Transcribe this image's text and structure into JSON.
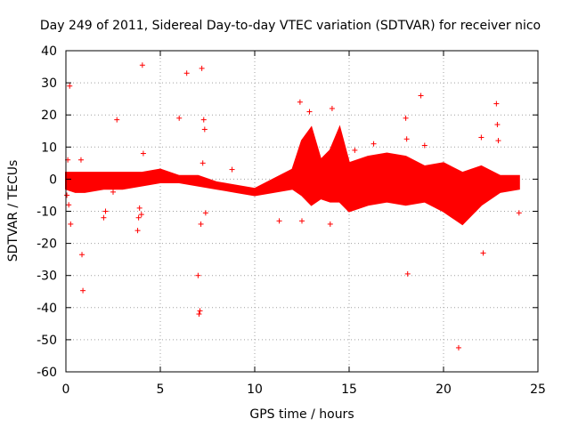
{
  "chart_data": {
    "type": "scatter",
    "title": "Day 249 of 2011, Sidereal Day-to-day VTEC variation (SDTVAR) for receiver nico",
    "xlabel": "GPS time / hours",
    "ylabel": "SDTVAR / TECUs",
    "xlim": [
      0,
      25
    ],
    "ylim": [
      -60,
      40
    ],
    "xticks": [
      0,
      5,
      10,
      15,
      20,
      25
    ],
    "yticks": [
      -60,
      -50,
      -40,
      -30,
      -20,
      -10,
      0,
      10,
      20,
      30,
      40
    ],
    "grid": true,
    "marker": "+",
    "series_color": "#ff0000",
    "series": [
      {
        "name": "SDTVAR",
        "x": [
          0.05,
          0.1,
          0.15,
          0.2,
          0.25,
          0.3,
          0.8,
          0.85,
          0.9,
          1.0,
          2.0,
          2.1,
          2.5,
          2.7,
          2.8,
          3.8,
          3.85,
          3.9,
          4.0,
          4.05,
          4.1,
          6.0,
          6.4,
          7.0,
          7.05,
          7.1,
          7.15,
          7.2,
          7.25,
          7.3,
          7.35,
          7.4,
          8.8,
          11.3,
          12.4,
          12.5,
          12.6,
          12.9,
          13.0,
          14.0,
          14.1,
          15.3,
          16.3,
          18.0,
          18.05,
          18.1,
          18.8,
          19.0,
          20.0,
          20.8,
          22.0,
          22.1,
          22.8,
          22.85,
          22.9,
          24.0
        ],
        "y": [
          -5,
          6,
          -8,
          29,
          -14,
          1,
          6,
          -23.5,
          -34.7,
          1,
          -12,
          -10,
          -4,
          18.5,
          1,
          -16,
          -12,
          -9,
          -11,
          35.5,
          8,
          19,
          33,
          -30,
          -42,
          -41,
          -14,
          34.5,
          5,
          18.5,
          15.5,
          -10.5,
          3,
          -13,
          24,
          -13,
          -5,
          21,
          -4,
          -14,
          22,
          9,
          11,
          19,
          12.5,
          -29.5,
          26,
          10.5,
          4,
          -52.5,
          13,
          -23,
          23.5,
          17,
          12,
          -10.5
        ]
      }
    ],
    "band_envelope": {
      "x": [
        0,
        0.5,
        1,
        2,
        3,
        4,
        5,
        6,
        7,
        8,
        9,
        10,
        11,
        12,
        12.5,
        13,
        13.5,
        14,
        14.5,
        15,
        16,
        17,
        18,
        19,
        20,
        21,
        22,
        23,
        24
      ],
      "upper": [
        2,
        2,
        2,
        2,
        2,
        2,
        3,
        1,
        1,
        -1,
        -2,
        -3,
        0,
        3,
        12,
        16,
        6,
        9,
        16,
        5,
        7,
        8,
        7,
        4,
        5,
        2,
        4,
        1,
        1
      ],
      "lower": [
        -3,
        -4,
        -4,
        -3,
        -3,
        -2,
        -1,
        -1,
        -2,
        -3,
        -4,
        -5,
        -4,
        -3,
        -5,
        -8,
        -6,
        -7,
        -7,
        -10,
        -8,
        -7,
        -8,
        -7,
        -10,
        -14,
        -8,
        -4,
        -3
      ]
    }
  }
}
